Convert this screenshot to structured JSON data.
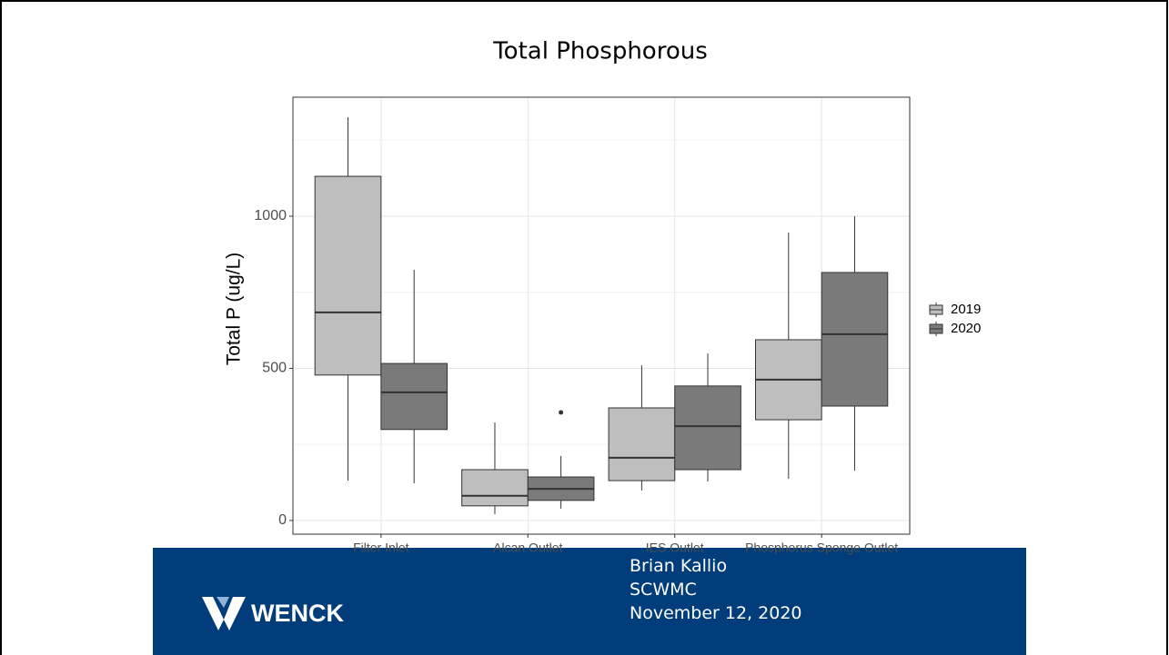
{
  "chart_data": {
    "type": "boxplot",
    "title": "Total Phosphorous",
    "ylabel": "Total P (ug/L)",
    "categories": [
      "Filter Inlet",
      "Alcan Outlet",
      "IES Outlet",
      "Phosphorus Sponge Outlet"
    ],
    "series": [
      {
        "name": "2019",
        "color": "#bebebe",
        "whisker_low": [
          131,
          21,
          99,
          137
        ],
        "q1": [
          478,
          48,
          131,
          331
        ],
        "median": [
          684,
          81,
          206,
          463
        ],
        "q3": [
          1131,
          167,
          370,
          594
        ],
        "whisker_high": [
          1325,
          322,
          510,
          946
        ],
        "outliers": [
          [],
          [],
          [],
          []
        ]
      },
      {
        "name": "2020",
        "color": "#7a7a7a",
        "whisker_low": [
          122,
          39,
          128,
          164
        ],
        "q1": [
          299,
          66,
          167,
          376
        ],
        "median": [
          421,
          104,
          310,
          612
        ],
        "q3": [
          516,
          143,
          442,
          815
        ],
        "whisker_high": [
          824,
          212,
          549,
          1000
        ],
        "outliers": [
          [],
          [
            355
          ],
          [],
          []
        ]
      }
    ],
    "ylim": [
      -45,
      1391
    ],
    "yticks": [
      0,
      500,
      1000
    ],
    "y_minor_grid": [
      250,
      750,
      1250
    ],
    "grid": true,
    "legend": "right"
  },
  "footer": {
    "logo": "WENCK",
    "lines": [
      "Brian Kallio",
      "SCWMC",
      "November 12, 2020"
    ]
  }
}
